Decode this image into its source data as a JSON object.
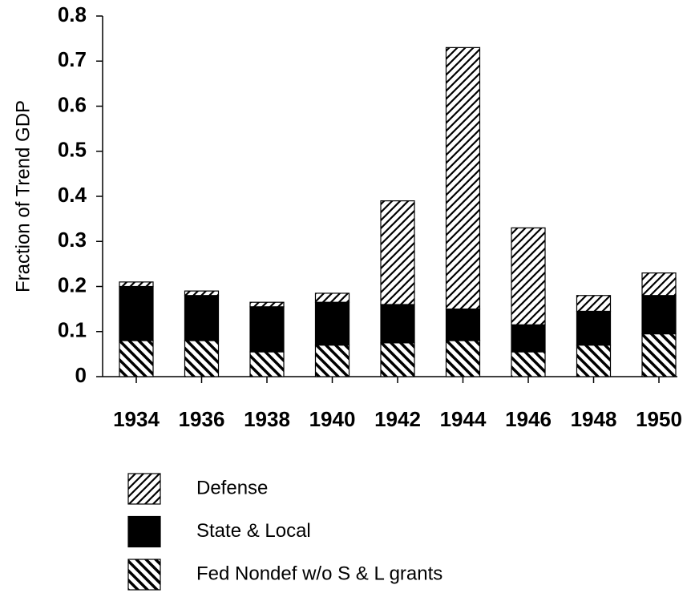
{
  "chart_data": {
    "type": "stacked_bar",
    "y_label": "Fraction of Trend GDP",
    "categories": [
      "1934",
      "1936",
      "1938",
      "1940",
      "1942",
      "1944",
      "1946",
      "1948",
      "1950"
    ],
    "series": [
      {
        "name": "Defense",
        "color": "#000000",
        "hatch": "/",
        "values": [
          0.01,
          0.01,
          0.01,
          0.02,
          0.23,
          0.58,
          0.215,
          0.035,
          0.05
        ]
      },
      {
        "name": "State & Local",
        "color": "#000000",
        "hatch": "none",
        "values": [
          0.12,
          0.1,
          0.1,
          0.095,
          0.085,
          0.07,
          0.06,
          0.075,
          0.085
        ]
      },
      {
        "name": "Fed Nondef w/o S & L grants",
        "color": "#000000",
        "hatch": "\\",
        "values": [
          0.08,
          0.08,
          0.055,
          0.07,
          0.075,
          0.08,
          0.055,
          0.07,
          0.095
        ]
      }
    ],
    "stack_order": "bottom-up from last series",
    "ylim": [
      0,
      0.8
    ],
    "yticks": [
      0,
      0.1,
      0.2,
      0.3,
      0.4,
      0.5,
      0.6,
      0.7,
      0.8
    ],
    "grid": false,
    "legend": "bottom"
  }
}
